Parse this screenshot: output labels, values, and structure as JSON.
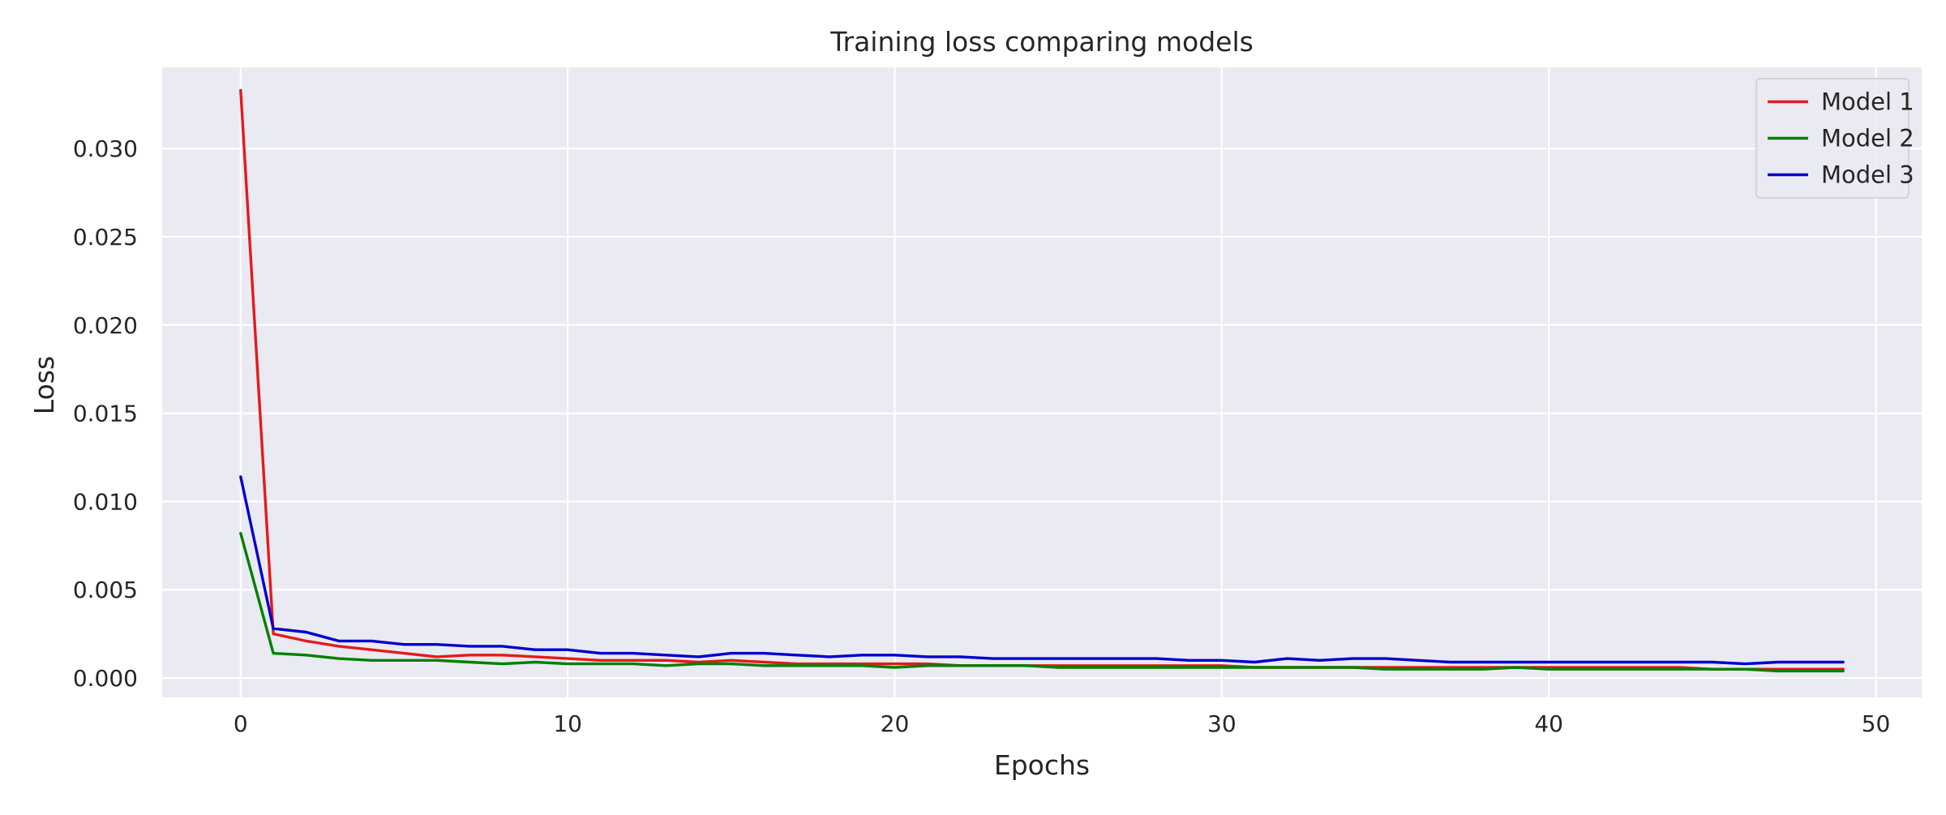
{
  "chart_data": {
    "type": "line",
    "title": "Training loss comparing models",
    "xlabel": "Epochs",
    "ylabel": "Loss",
    "xlim": [
      -2.4,
      51.4
    ],
    "ylim": [
      -0.0011,
      0.0346
    ],
    "xticks": [
      0,
      10,
      20,
      30,
      40,
      50
    ],
    "yticks": [
      0.0,
      0.005,
      0.01,
      0.015,
      0.02,
      0.025,
      0.03
    ],
    "xtick_labels": [
      "0",
      "10",
      "20",
      "30",
      "40",
      "50"
    ],
    "ytick_labels": [
      "0.000",
      "0.005",
      "0.010",
      "0.015",
      "0.020",
      "0.025",
      "0.030"
    ],
    "grid": true,
    "legend_position": "top-right",
    "background_color": "#eaeaf2",
    "grid_color": "#ffffff",
    "x": [
      0,
      1,
      2,
      3,
      4,
      5,
      6,
      7,
      8,
      9,
      10,
      11,
      12,
      13,
      14,
      15,
      16,
      17,
      18,
      19,
      20,
      21,
      22,
      23,
      24,
      25,
      26,
      27,
      28,
      29,
      30,
      31,
      32,
      33,
      34,
      35,
      36,
      37,
      38,
      39,
      40,
      41,
      42,
      43,
      44,
      45,
      46,
      47,
      48,
      49
    ],
    "series": [
      {
        "name": "Model 1",
        "color": "#e41a1c",
        "values": [
          0.0333,
          0.0025,
          0.0021,
          0.0018,
          0.0016,
          0.0014,
          0.0012,
          0.0013,
          0.0013,
          0.0012,
          0.0011,
          0.001,
          0.001,
          0.001,
          0.0009,
          0.001,
          0.0009,
          0.0008,
          0.0008,
          0.0008,
          0.0008,
          0.0008,
          0.0007,
          0.0007,
          0.0007,
          0.0007,
          0.0007,
          0.0007,
          0.0007,
          0.0007,
          0.0007,
          0.0006,
          0.0006,
          0.0006,
          0.0006,
          0.0006,
          0.0006,
          0.0006,
          0.0006,
          0.0006,
          0.0006,
          0.0006,
          0.0006,
          0.0006,
          0.0006,
          0.0005,
          0.0005,
          0.0005,
          0.0005,
          0.0005
        ]
      },
      {
        "name": "Model 2",
        "color": "#008000",
        "values": [
          0.0082,
          0.0014,
          0.0013,
          0.0011,
          0.001,
          0.001,
          0.001,
          0.0009,
          0.0008,
          0.0009,
          0.0008,
          0.0008,
          0.0008,
          0.0007,
          0.0008,
          0.0008,
          0.0007,
          0.0007,
          0.0007,
          0.0007,
          0.0006,
          0.0007,
          0.0007,
          0.0007,
          0.0007,
          0.0006,
          0.0006,
          0.0006,
          0.0006,
          0.0006,
          0.0006,
          0.0006,
          0.0006,
          0.0006,
          0.0006,
          0.0005,
          0.0005,
          0.0005,
          0.0005,
          0.0006,
          0.0005,
          0.0005,
          0.0005,
          0.0005,
          0.0005,
          0.0005,
          0.0005,
          0.0004,
          0.0004,
          0.0004
        ]
      },
      {
        "name": "Model 3",
        "color": "#0000cc",
        "values": [
          0.0114,
          0.0028,
          0.0026,
          0.0021,
          0.0021,
          0.0019,
          0.0019,
          0.0018,
          0.0018,
          0.0016,
          0.0016,
          0.0014,
          0.0014,
          0.0013,
          0.0012,
          0.0014,
          0.0014,
          0.0013,
          0.0012,
          0.0013,
          0.0013,
          0.0012,
          0.0012,
          0.0011,
          0.0011,
          0.0011,
          0.0011,
          0.0011,
          0.0011,
          0.001,
          0.001,
          0.0009,
          0.0011,
          0.001,
          0.0011,
          0.0011,
          0.001,
          0.0009,
          0.0009,
          0.0009,
          0.0009,
          0.0009,
          0.0009,
          0.0009,
          0.0009,
          0.0009,
          0.0008,
          0.0009,
          0.0009,
          0.0009
        ]
      }
    ]
  }
}
